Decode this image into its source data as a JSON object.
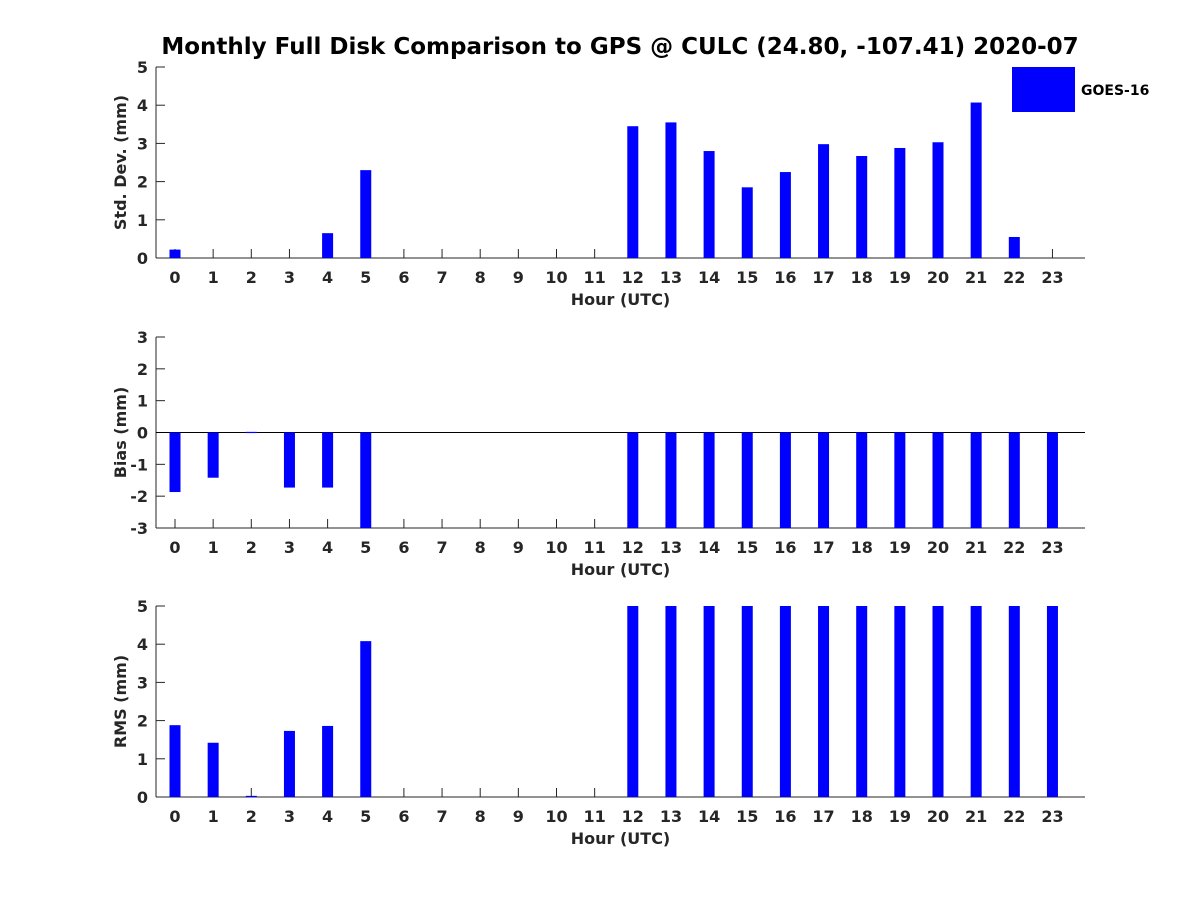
{
  "figure": {
    "title": "Monthly Full Disk Comparison to GPS @ CULC (24.80, -107.41) 2020-07"
  },
  "legend": {
    "label": "GOES-16",
    "color": "#0000ff"
  },
  "chart_data": [
    {
      "type": "bar",
      "name": "std-dev",
      "xlabel": "Hour (UTC)",
      "ylabel": "Std. Dev. (mm)",
      "ylim": [
        0,
        5
      ],
      "yticks": [
        0,
        1,
        2,
        3,
        4,
        5
      ],
      "categories": [
        "0",
        "1",
        "2",
        "3",
        "4",
        "5",
        "6",
        "7",
        "8",
        "9",
        "10",
        "11",
        "12",
        "13",
        "14",
        "15",
        "16",
        "17",
        "18",
        "19",
        "20",
        "21",
        "22",
        "23"
      ],
      "series": [
        {
          "name": "GOES-16",
          "values": [
            0.22,
            null,
            null,
            null,
            0.65,
            2.3,
            null,
            null,
            null,
            null,
            null,
            null,
            3.45,
            3.55,
            2.8,
            1.85,
            2.25,
            2.98,
            2.67,
            2.88,
            3.03,
            4.07,
            0.55,
            null
          ]
        }
      ]
    },
    {
      "type": "bar",
      "name": "bias",
      "xlabel": "Hour (UTC)",
      "ylabel": "Bias (mm)",
      "ylim": [
        -3,
        3
      ],
      "yticks": [
        -3,
        -2,
        -1,
        0,
        1,
        2,
        3
      ],
      "zero_line": true,
      "categories": [
        "0",
        "1",
        "2",
        "3",
        "4",
        "5",
        "6",
        "7",
        "8",
        "9",
        "10",
        "11",
        "12",
        "13",
        "14",
        "15",
        "16",
        "17",
        "18",
        "19",
        "20",
        "21",
        "22",
        "23"
      ],
      "series": [
        {
          "name": "GOES-16",
          "values": [
            -1.87,
            -1.42,
            0.02,
            -1.73,
            -1.73,
            -3.0,
            null,
            null,
            null,
            null,
            null,
            null,
            -3.0,
            -3.0,
            -3.0,
            -3.0,
            -3.0,
            -3.0,
            -3.0,
            -3.0,
            -3.0,
            -3.0,
            -3.0,
            -3.0
          ]
        }
      ]
    },
    {
      "type": "bar",
      "name": "rms",
      "xlabel": "Hour (UTC)",
      "ylabel": "RMS (mm)",
      "ylim": [
        0,
        5
      ],
      "yticks": [
        0,
        1,
        2,
        3,
        4,
        5
      ],
      "categories": [
        "0",
        "1",
        "2",
        "3",
        "4",
        "5",
        "6",
        "7",
        "8",
        "9",
        "10",
        "11",
        "12",
        "13",
        "14",
        "15",
        "16",
        "17",
        "18",
        "19",
        "20",
        "21",
        "22",
        "23"
      ],
      "series": [
        {
          "name": "GOES-16",
          "values": [
            1.88,
            1.42,
            0.03,
            1.73,
            1.86,
            4.08,
            null,
            null,
            null,
            null,
            null,
            null,
            5.0,
            5.0,
            5.0,
            5.0,
            5.0,
            5.0,
            5.0,
            5.0,
            5.0,
            5.0,
            5.0,
            5.0
          ]
        }
      ]
    }
  ]
}
